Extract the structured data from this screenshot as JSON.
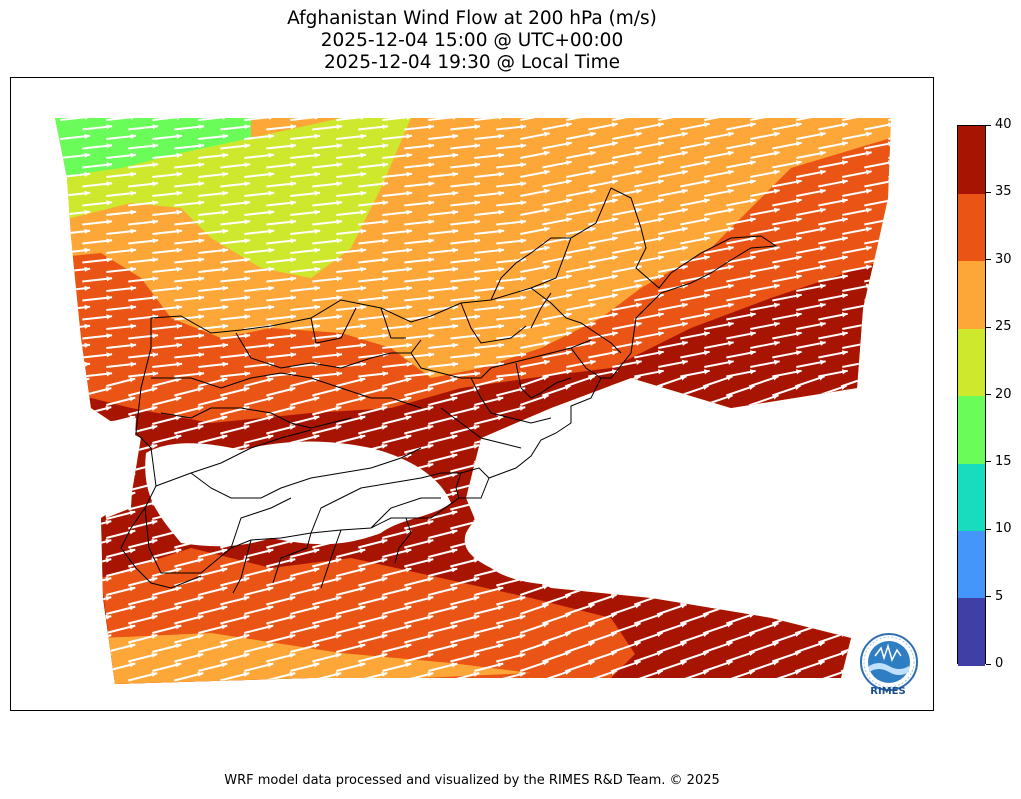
{
  "title": {
    "line1": "Afghanistan Wind Flow at 200 hPa (m/s)",
    "line2": "2025-12-04 15:00 @ UTC+00:00",
    "line3": "2025-12-04 19:30 @ Local Time"
  },
  "colorbar": {
    "levels": [
      {
        "from": 0,
        "to": 5,
        "color": "#3f3fa5"
      },
      {
        "from": 5,
        "to": 10,
        "color": "#4596fb"
      },
      {
        "from": 10,
        "to": 15,
        "color": "#19dcbf"
      },
      {
        "from": 15,
        "to": 20,
        "color": "#6afc58"
      },
      {
        "from": 20,
        "to": 25,
        "color": "#cee82e"
      },
      {
        "from": 25,
        "to": 30,
        "color": "#fca737"
      },
      {
        "from": 30,
        "to": 35,
        "color": "#ea5414"
      },
      {
        "from": 35,
        "to": 40,
        "color": "#a71502"
      }
    ],
    "tick_labels": [
      "0",
      "5",
      "10",
      "15",
      "20",
      "25",
      "30",
      "35",
      "40"
    ],
    "range": [
      0,
      40
    ]
  },
  "logo": {
    "text": "RIMES"
  },
  "footer": "WRF model data processed and visualized by the RIMES R&D Team. © 2025"
}
